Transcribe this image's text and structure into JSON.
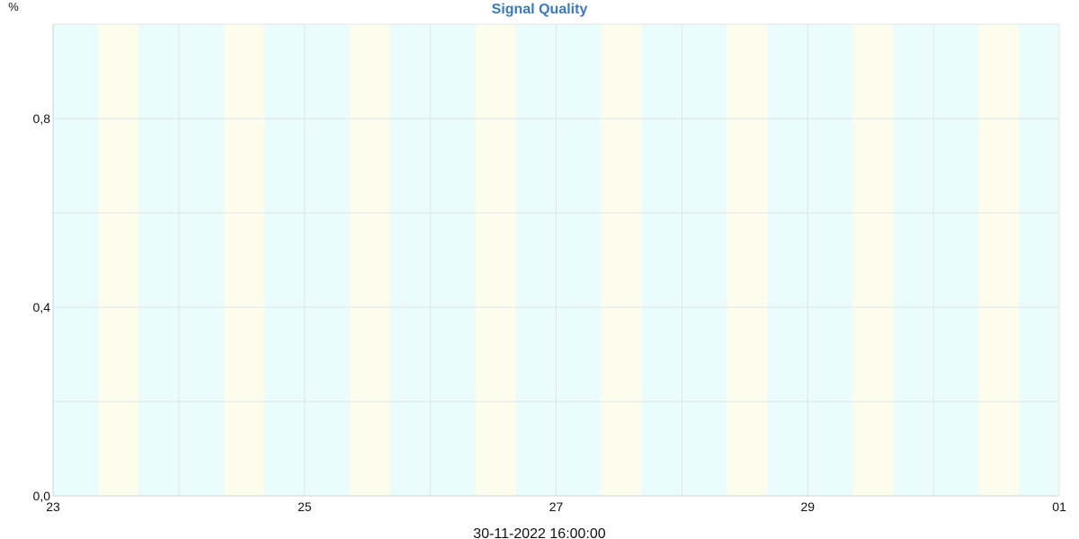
{
  "chart_data": {
    "type": "line",
    "title": "Signal Quality",
    "ylabel": "%",
    "xlabel": "",
    "timestamp": "30-11-2022 16:00:00",
    "ylim": [
      0,
      1
    ],
    "y_ticks": [
      {
        "value": 0.0,
        "label": "0,0"
      },
      {
        "value": 0.4,
        "label": "0,4"
      },
      {
        "value": 0.8,
        "label": "0,8"
      }
    ],
    "y_grid": [
      0.2,
      0.4,
      0.6,
      0.8,
      1.0
    ],
    "xlim": [
      "2022-11-23",
      "2022-12-01"
    ],
    "x_ticks": [
      {
        "date": "2022-11-23",
        "label": "23"
      },
      {
        "date": "2022-11-25",
        "label": "25"
      },
      {
        "date": "2022-11-27",
        "label": "27"
      },
      {
        "date": "2022-11-29",
        "label": "29"
      },
      {
        "date": "2022-12-01",
        "label": "01"
      }
    ],
    "x_grid": [
      "2022-11-24",
      "2022-11-25",
      "2022-11-26",
      "2022-11-27",
      "2022-11-28",
      "2022-11-29",
      "2022-11-30"
    ],
    "daylight_bands": [
      {
        "date": "2022-11-23"
      },
      {
        "date": "2022-11-24"
      },
      {
        "date": "2022-11-25"
      },
      {
        "date": "2022-11-26"
      },
      {
        "date": "2022-11-27"
      },
      {
        "date": "2022-11-28"
      },
      {
        "date": "2022-11-29"
      },
      {
        "date": "2022-11-30"
      }
    ],
    "series": [],
    "grid": true,
    "legend": "none",
    "colors": {
      "title": "#3d7ab5",
      "night_band": "#ebfcfc",
      "day_band": "#fdfdee",
      "grid": "#dfe6e6",
      "axis": "#c9d3d3",
      "text": "#111111"
    }
  }
}
